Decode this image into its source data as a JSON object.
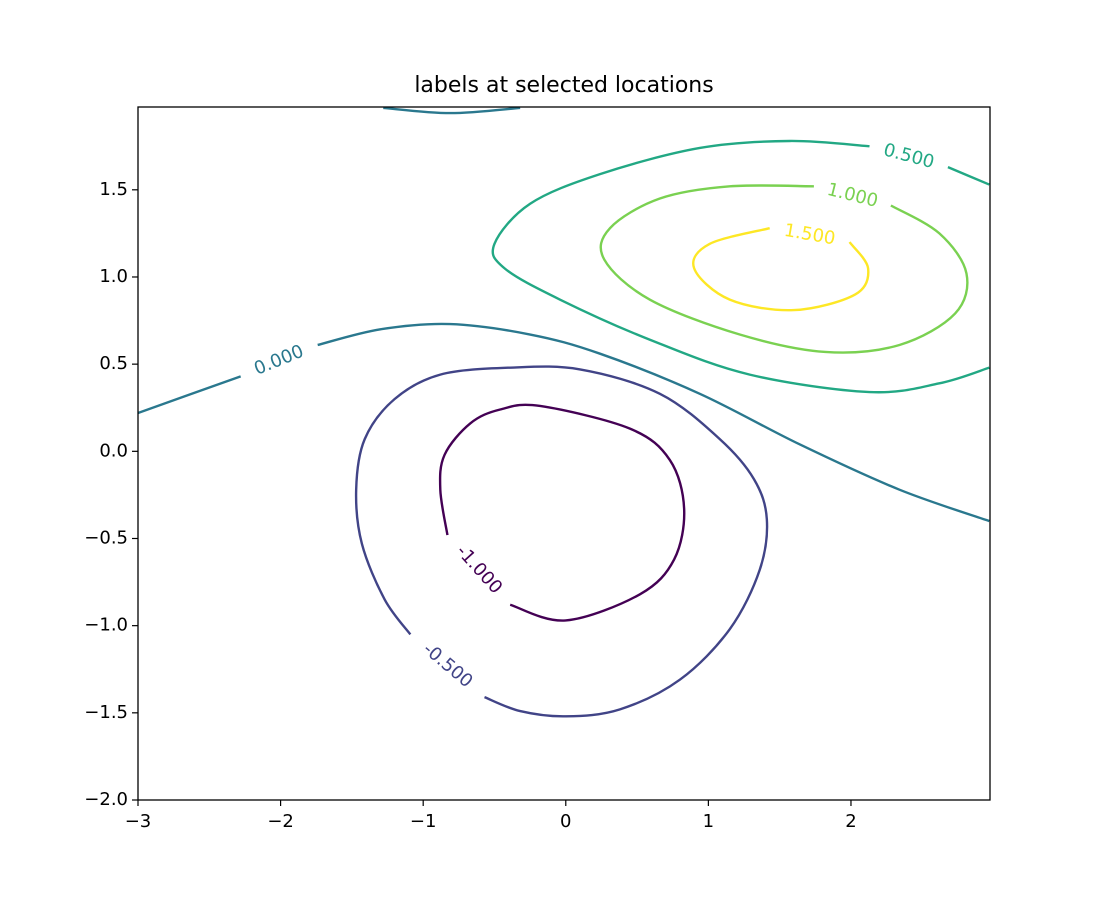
{
  "chart_data": {
    "type": "contour",
    "title": "labels at selected locations",
    "xlim": [
      -3,
      2.975
    ],
    "ylim": [
      -2,
      1.975
    ],
    "xticks": [
      {
        "value": -3,
        "label": "−3"
      },
      {
        "value": -2,
        "label": "−2"
      },
      {
        "value": -1,
        "label": "−1"
      },
      0,
      1,
      2
    ],
    "yticks": [
      {
        "value": -2,
        "label": "−2.0"
      },
      {
        "value": -1.5,
        "label": "−1.5"
      },
      {
        "value": -1,
        "label": "−1.0"
      },
      {
        "value": -0.5,
        "label": "−0.5"
      },
      {
        "value": 0,
        "label": "0.0"
      },
      0.5,
      {
        "value": 1,
        "label": "1.0"
      },
      1.5
    ],
    "contours": [
      {
        "level": {
          "value": -1,
          "label": "-1.000"
        },
        "color": "#440154",
        "x": [
          -0.39,
          0,
          0.52,
          0.76,
          0.83,
          0.73,
          0.45,
          -0.18,
          -0.46,
          -0.67,
          -0.85,
          -0.88,
          -0.83
        ],
        "y": [
          -0.88,
          -0.97,
          -0.82,
          -0.62,
          -0.33,
          -0.05,
          0.13,
          0.26,
          0.24,
          0.16,
          -0.02,
          -0.22,
          -0.48
        ]
      },
      {
        "level": {
          "value": -0.5,
          "label": "-0.500"
        },
        "color": "#414487",
        "x": [
          -0.57,
          -0.32,
          0,
          0.38,
          0.8,
          1.15,
          1.36,
          1.41,
          1.32,
          1.08,
          0.66,
          0.1,
          -0.39,
          -0.88,
          -1.2,
          -1.41,
          -1.47,
          -1.43,
          -1.27,
          -1.09
        ],
        "y": [
          -1.41,
          -1.49,
          -1.52,
          -1.48,
          -1.31,
          -1.02,
          -0.68,
          -0.39,
          -0.16,
          0.07,
          0.33,
          0.47,
          0.48,
          0.44,
          0.3,
          0.07,
          -0.22,
          -0.53,
          -0.85,
          -1.05
        ]
      },
      {
        "level": {
          "value": 0,
          "label": "0.000"
        },
        "color": "#2a788e",
        "x": [
          -3,
          -2.28,
          null,
          -1.74,
          -1.3,
          -0.81,
          -0.25,
          0.24,
          0.94,
          1.64,
          2.34,
          2.97,
          null,
          -1.28,
          -0.81,
          -0.32
        ],
        "y": [
          0.22,
          0.43,
          null,
          0.61,
          0.7,
          0.73,
          0.67,
          0.56,
          0.33,
          0.04,
          -0.22,
          -0.4,
          null,
          1.97,
          1.94,
          1.97
        ]
      },
      {
        "level": {
          "value": 0.5,
          "label": "0.500"
        },
        "color": "#22a884",
        "x": [
          2.97,
          2.68,
          null,
          2.13,
          1.57,
          0.94,
          0.24,
          -0.25,
          -0.5,
          -0.43,
          -0.04,
          0.59,
          1.29,
          2.13,
          2.62,
          2.97
        ],
        "y": [
          1.53,
          1.63,
          null,
          1.75,
          1.78,
          1.74,
          1.59,
          1.42,
          1.19,
          1.05,
          0.87,
          0.64,
          0.44,
          0.34,
          0.39,
          0.48
        ]
      },
      {
        "level": {
          "value": 1,
          "label": "1.000"
        },
        "color": "#7ad151",
        "x": [
          2.28,
          2.62,
          2.81,
          2.73,
          2.34,
          1.82,
          1.22,
          0.59,
          0.27,
          0.31,
          0.66,
          1.15,
          1.74
        ],
        "y": [
          1.41,
          1.25,
          1.02,
          0.79,
          0.61,
          0.57,
          0.67,
          0.87,
          1.1,
          1.28,
          1.45,
          1.52,
          1.52
        ]
      },
      {
        "level": {
          "value": 1.5,
          "label": "1.500"
        },
        "color": "#fde725",
        "x": [
          1.99,
          2.12,
          2.03,
          1.6,
          1.15,
          0.9,
          1.01,
          1.43
        ],
        "y": [
          1.2,
          1.05,
          0.9,
          0.81,
          0.87,
          1.05,
          1.19,
          1.28
        ]
      }
    ]
  }
}
